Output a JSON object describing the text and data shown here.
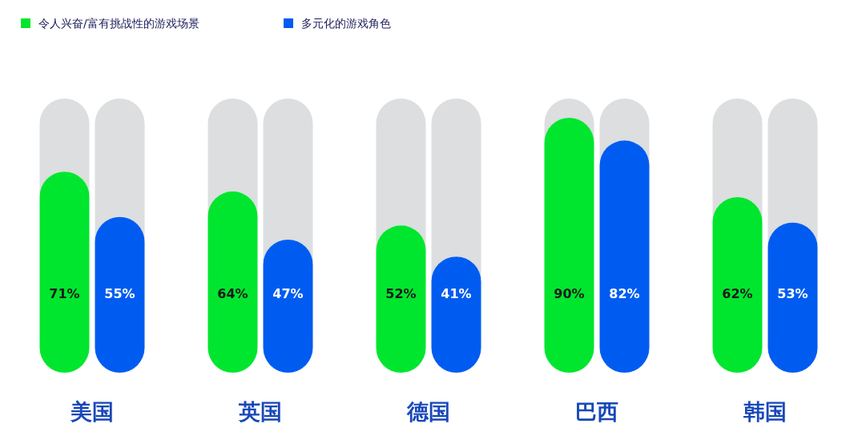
{
  "chart_data": {
    "type": "bar",
    "categories": [
      "美国",
      "英国",
      "德国",
      "巴西",
      "韩国"
    ],
    "series": [
      {
        "name": "令人兴奋/富有挑战性的游戏场景",
        "color": "#00e62e",
        "values": [
          71,
          64,
          52,
          90,
          62
        ],
        "value_labels": [
          "71%",
          "64%",
          "52%",
          "90%",
          "62%"
        ]
      },
      {
        "name": "多元化的游戏角色",
        "color": "#005cf0",
        "values": [
          55,
          47,
          41,
          82,
          53
        ],
        "value_labels": [
          "55%",
          "47%",
          "41%",
          "82%",
          "53%"
        ]
      }
    ],
    "legend": "top left"
  }
}
